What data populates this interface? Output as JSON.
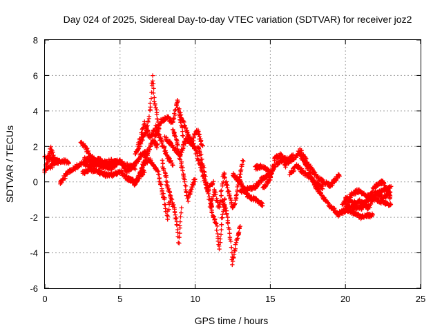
{
  "chart_data": {
    "type": "scatter",
    "title": "Day 024 of 2025, Sidereal Day-to-day VTEC variation (SDTVAR) for receiver joz2",
    "xlabel": "GPS time / hours",
    "ylabel": "SDTVAR / TECUs",
    "xlim": [
      0,
      25
    ],
    "ylim": [
      -6,
      8
    ],
    "xticks": [
      "0",
      "5",
      "10",
      "15",
      "20",
      "25"
    ],
    "yticks": [
      "-6",
      "-4",
      "-2",
      "0",
      "2",
      "4",
      "6",
      "8"
    ],
    "grid": true,
    "marker": "+",
    "series": [
      {
        "name": "SDTVAR",
        "color": "#ff0000",
        "tracks": [
          {
            "t0": 0.0,
            "t1": 0.9,
            "pts": [
              [
                0.0,
                0.7
              ],
              [
                0.2,
                1.2
              ],
              [
                0.4,
                1.9
              ],
              [
                0.6,
                1.3
              ],
              [
                0.9,
                1.1
              ]
            ]
          },
          {
            "t0": 0.0,
            "t1": 1.6,
            "pts": [
              [
                0.0,
                1.4
              ],
              [
                0.4,
                1.3
              ],
              [
                0.8,
                1.1
              ],
              [
                1.2,
                1.2
              ],
              [
                1.6,
                1.1
              ]
            ]
          },
          {
            "t0": 0.0,
            "t1": 0.8,
            "pts": [
              [
                0.0,
                0.6
              ],
              [
                0.3,
                0.8
              ],
              [
                0.6,
                1.0
              ],
              [
                0.8,
                1.2
              ]
            ]
          },
          {
            "t0": 1.0,
            "t1": 4.5,
            "pts": [
              [
                1.0,
                -0.1
              ],
              [
                1.5,
                0.5
              ],
              [
                2.0,
                0.8
              ],
              [
                2.5,
                1.1
              ],
              [
                3.0,
                0.9
              ],
              [
                3.5,
                1.0
              ],
              [
                4.0,
                0.8
              ],
              [
                4.5,
                0.9
              ]
            ]
          },
          {
            "t0": 2.4,
            "t1": 4.6,
            "pts": [
              [
                2.4,
                2.2
              ],
              [
                2.8,
                1.8
              ],
              [
                3.2,
                1.3
              ],
              [
                3.6,
                1.0
              ],
              [
                4.0,
                1.1
              ],
              [
                4.6,
                1.0
              ]
            ]
          },
          {
            "t0": 2.5,
            "t1": 6.6,
            "pts": [
              [
                2.5,
                0.5
              ],
              [
                3.0,
                0.7
              ],
              [
                3.5,
                0.6
              ],
              [
                4.0,
                0.4
              ],
              [
                4.5,
                0.4
              ],
              [
                5.0,
                0.6
              ],
              [
                5.5,
                0.2
              ],
              [
                6.0,
                0.0
              ],
              [
                6.6,
                0.6
              ]
            ]
          },
          {
            "t0": 2.6,
            "t1": 6.0,
            "pts": [
              [
                2.6,
                1.3
              ],
              [
                3.2,
                1.2
              ],
              [
                3.8,
                1.0
              ],
              [
                4.4,
                1.2
              ],
              [
                5.0,
                1.1
              ],
              [
                5.5,
                0.9
              ],
              [
                6.0,
                0.8
              ]
            ]
          },
          {
            "t0": 3.5,
            "t1": 6.8,
            "pts": [
              [
                3.5,
                1.4
              ],
              [
                4.0,
                0.9
              ],
              [
                4.5,
                0.8
              ],
              [
                5.0,
                1.2
              ],
              [
                5.5,
                0.6
              ],
              [
                6.0,
                1.0
              ],
              [
                6.4,
                1.5
              ],
              [
                6.8,
                1.7
              ]
            ]
          },
          {
            "t0": 5.5,
            "t1": 7.5,
            "pts": [
              [
                5.5,
                0.2
              ],
              [
                6.0,
                -0.1
              ],
              [
                6.5,
                0.8
              ],
              [
                6.9,
                1.8
              ],
              [
                7.2,
                2.3
              ],
              [
                7.5,
                2.0
              ]
            ]
          },
          {
            "t0": 6.0,
            "t1": 7.6,
            "pts": [
              [
                6.0,
                1.5
              ],
              [
                6.5,
                2.5
              ],
              [
                6.8,
                3.0
              ],
              [
                7.0,
                4.2
              ],
              [
                7.15,
                6.0
              ],
              [
                7.3,
                4.5
              ],
              [
                7.6,
                3.0
              ]
            ]
          },
          {
            "t0": 6.2,
            "t1": 8.5,
            "pts": [
              [
                6.2,
                2.0
              ],
              [
                6.6,
                3.3
              ],
              [
                7.0,
                2.5
              ],
              [
                7.4,
                3.1
              ],
              [
                7.8,
                2.2
              ],
              [
                8.1,
                1.5
              ],
              [
                8.5,
                1.0
              ]
            ]
          },
          {
            "t0": 6.5,
            "t1": 8.3,
            "pts": [
              [
                6.5,
                1.0
              ],
              [
                7.0,
                1.2
              ],
              [
                7.5,
                0.6
              ],
              [
                7.8,
                -0.5
              ],
              [
                8.0,
                -1.2
              ],
              [
                8.15,
                -2.1
              ],
              [
                8.3,
                -1.0
              ]
            ]
          },
          {
            "t0": 7.3,
            "t1": 9.2,
            "pts": [
              [
                7.3,
                2.5
              ],
              [
                7.8,
                3.5
              ],
              [
                8.2,
                3.6
              ],
              [
                8.5,
                3.3
              ],
              [
                8.8,
                4.6
              ],
              [
                9.2,
                2.6
              ]
            ]
          },
          {
            "t0": 7.8,
            "t1": 9.1,
            "pts": [
              [
                7.8,
                1.2
              ],
              [
                8.1,
                0.0
              ],
              [
                8.4,
                -1.0
              ],
              [
                8.6,
                -1.5
              ],
              [
                8.8,
                -2.5
              ],
              [
                8.9,
                -3.5
              ],
              [
                9.1,
                -1.5
              ]
            ]
          },
          {
            "t0": 8.0,
            "t1": 10.5,
            "pts": [
              [
                8.0,
                2.5
              ],
              [
                8.5,
                2.0
              ],
              [
                9.0,
                1.5
              ],
              [
                9.4,
                2.4
              ],
              [
                9.8,
                2.1
              ],
              [
                10.1,
                3.0
              ],
              [
                10.5,
                2.0
              ]
            ]
          },
          {
            "t0": 8.5,
            "t1": 10.0,
            "pts": [
              [
                8.5,
                3.0
              ],
              [
                8.8,
                2.2
              ],
              [
                9.1,
                0.9
              ],
              [
                9.3,
                0.0
              ],
              [
                9.5,
                -1.0
              ],
              [
                9.7,
                -0.5
              ],
              [
                10.0,
                0.2
              ]
            ]
          },
          {
            "t0": 9.0,
            "t1": 11.2,
            "pts": [
              [
                9.0,
                3.8
              ],
              [
                9.5,
                2.7
              ],
              [
                10.0,
                1.9
              ],
              [
                10.3,
                1.0
              ],
              [
                10.5,
                0.5
              ],
              [
                10.8,
                -0.5
              ],
              [
                11.2,
                0.0
              ]
            ]
          },
          {
            "t0": 10.2,
            "t1": 12.0,
            "pts": [
              [
                10.2,
                2.0
              ],
              [
                10.5,
                1.0
              ],
              [
                10.8,
                -0.3
              ],
              [
                11.0,
                -1.2
              ],
              [
                11.2,
                -2.0
              ],
              [
                11.4,
                -2.3
              ],
              [
                11.6,
                -3.7
              ],
              [
                11.8,
                -2.0
              ],
              [
                12.0,
                -1.0
              ]
            ]
          },
          {
            "t0": 11.0,
            "t1": 13.2,
            "pts": [
              [
                11.0,
                -1.5
              ],
              [
                11.3,
                -0.5
              ],
              [
                11.6,
                -1.5
              ],
              [
                11.9,
                0.5
              ],
              [
                12.2,
                -0.5
              ],
              [
                12.5,
                -1.5
              ],
              [
                12.7,
                -1.0
              ],
              [
                13.0,
                0.5
              ],
              [
                13.2,
                1.2
              ]
            ]
          },
          {
            "t0": 11.8,
            "t1": 13.0,
            "pts": [
              [
                11.8,
                -1.0
              ],
              [
                12.1,
                -1.8
              ],
              [
                12.3,
                -3.0
              ],
              [
                12.5,
                -4.6
              ],
              [
                12.7,
                -3.5
              ],
              [
                13.0,
                -2.5
              ]
            ]
          },
          {
            "t0": 12.5,
            "t1": 14.5,
            "pts": [
              [
                12.5,
                0.4
              ],
              [
                13.0,
                0.0
              ],
              [
                13.5,
                -0.8
              ],
              [
                14.0,
                -1.0
              ],
              [
                14.5,
                -1.3
              ]
            ]
          },
          {
            "t0": 13.0,
            "t1": 15.0,
            "pts": [
              [
                13.0,
                -0.6
              ],
              [
                13.5,
                -0.4
              ],
              [
                14.0,
                -0.3
              ],
              [
                14.5,
                0.2
              ],
              [
                15.0,
                0.4
              ]
            ]
          },
          {
            "t0": 14.0,
            "t1": 15.5,
            "pts": [
              [
                14.0,
                0.8
              ],
              [
                14.5,
                0.9
              ],
              [
                15.0,
                0.5
              ],
              [
                15.5,
                1.1
              ]
            ]
          },
          {
            "t0": 14.5,
            "t1": 16.5,
            "pts": [
              [
                14.5,
                -0.4
              ],
              [
                15.0,
                0.2
              ],
              [
                15.3,
                1.3
              ],
              [
                15.7,
                1.5
              ],
              [
                16.0,
                0.9
              ],
              [
                16.5,
                1.5
              ]
            ]
          },
          {
            "t0": 15.5,
            "t1": 19.6,
            "pts": [
              [
                15.5,
                1.0
              ],
              [
                16.0,
                1.3
              ],
              [
                16.5,
                1.2
              ],
              [
                17.0,
                1.8
              ],
              [
                17.5,
                1.0
              ],
              [
                18.0,
                0.4
              ],
              [
                18.5,
                0.0
              ],
              [
                19.0,
                -0.2
              ],
              [
                19.6,
                0.4
              ]
            ]
          },
          {
            "t0": 16.3,
            "t1": 18.5,
            "pts": [
              [
                16.3,
                0.5
              ],
              [
                16.8,
                0.9
              ],
              [
                17.2,
                0.5
              ],
              [
                17.6,
                0.3
              ],
              [
                18.0,
                -0.1
              ],
              [
                18.5,
                -0.3
              ]
            ]
          },
          {
            "t0": 17.0,
            "t1": 20.0,
            "pts": [
              [
                17.0,
                1.5
              ],
              [
                17.5,
                0.8
              ],
              [
                18.0,
                -0.3
              ],
              [
                18.5,
                -0.8
              ],
              [
                19.0,
                -1.4
              ],
              [
                19.5,
                -1.8
              ],
              [
                20.0,
                -1.6
              ]
            ]
          },
          {
            "t0": 19.5,
            "t1": 21.8,
            "pts": [
              [
                19.5,
                -1.9
              ],
              [
                20.0,
                -1.6
              ],
              [
                20.5,
                -1.7
              ],
              [
                21.0,
                -2.0
              ],
              [
                21.4,
                -1.9
              ],
              [
                21.8,
                -1.9
              ]
            ]
          },
          {
            "t0": 19.8,
            "t1": 23.0,
            "pts": [
              [
                19.8,
                -1.2
              ],
              [
                20.3,
                -0.8
              ],
              [
                20.8,
                -0.5
              ],
              [
                21.3,
                -0.7
              ],
              [
                21.8,
                -0.9
              ],
              [
                22.3,
                -1.1
              ],
              [
                23.0,
                -1.3
              ]
            ]
          },
          {
            "t0": 20.0,
            "t1": 23.0,
            "pts": [
              [
                20.0,
                -1.3
              ],
              [
                20.5,
                -1.5
              ],
              [
                21.0,
                -1.4
              ],
              [
                21.5,
                -1.0
              ],
              [
                22.0,
                -0.7
              ],
              [
                22.5,
                -0.5
              ],
              [
                23.0,
                -0.3
              ]
            ]
          },
          {
            "t0": 20.0,
            "t1": 23.0,
            "pts": [
              [
                20.0,
                -0.9
              ],
              [
                20.5,
                -1.2
              ],
              [
                21.0,
                -1.1
              ],
              [
                21.5,
                -1.5
              ],
              [
                22.0,
                -0.6
              ],
              [
                22.5,
                -0.9
              ],
              [
                23.0,
                -0.6
              ]
            ]
          },
          {
            "t0": 21.0,
            "t1": 23.0,
            "pts": [
              [
                21.0,
                -1.5
              ],
              [
                21.5,
                -1.0
              ],
              [
                22.0,
                -0.2
              ],
              [
                22.5,
                0.0
              ],
              [
                23.0,
                -0.9
              ]
            ]
          }
        ]
      }
    ]
  }
}
